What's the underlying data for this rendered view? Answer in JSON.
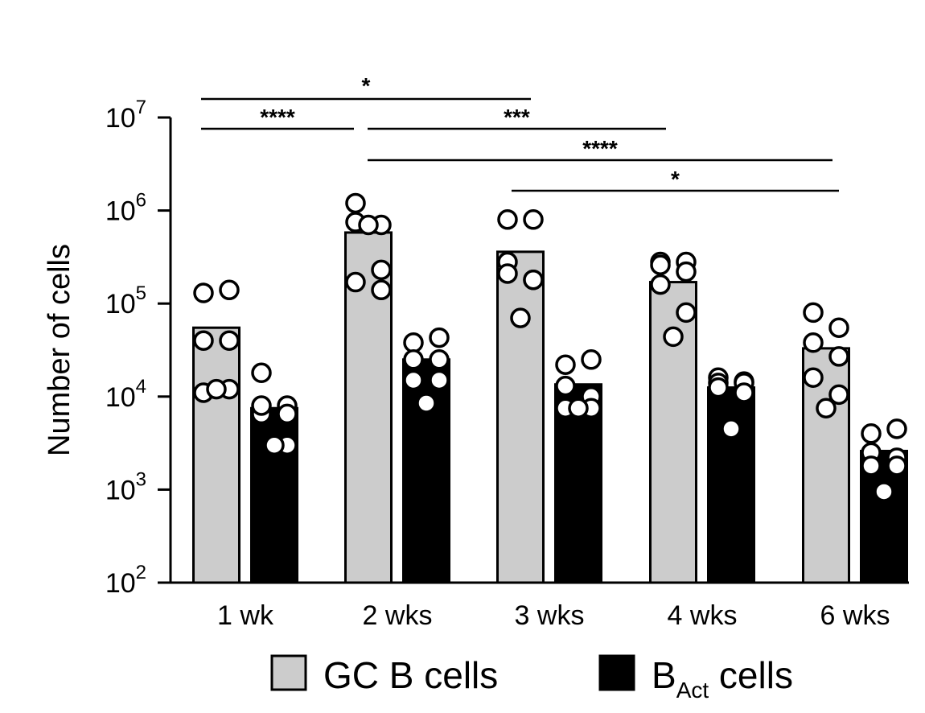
{
  "chart_data": {
    "type": "bar",
    "ylabel": "Number of cells",
    "yscale": "log",
    "ylim": [
      100,
      10000000
    ],
    "yticks": [
      {
        "value": 100,
        "base": "10",
        "exp": "2"
      },
      {
        "value": 1000,
        "base": "10",
        "exp": "3"
      },
      {
        "value": 10000,
        "base": "10",
        "exp": "4"
      },
      {
        "value": 100000,
        "base": "10",
        "exp": "5"
      },
      {
        "value": 1000000,
        "base": "10",
        "exp": "6"
      },
      {
        "value": 10000000,
        "base": "10",
        "exp": "7"
      }
    ],
    "categories": [
      "1 wk",
      "2 wks",
      "3 wks",
      "4 wks",
      "6 wks"
    ],
    "legend": {
      "placement": "bottom",
      "entries": [
        {
          "text": "GC B cells",
          "sub": ""
        },
        {
          "text": "B",
          "sub": "Act",
          "suffix": " cells"
        }
      ]
    },
    "colors": {
      "gc": "#cccccc",
      "act": "#000000",
      "point_fill": "#ffffff",
      "axis": "#000000"
    },
    "series": [
      {
        "values": [
          55000,
          580000,
          360000,
          170000,
          33000
        ],
        "points": [
          [
            130000,
            140000,
            40000,
            40000,
            11000,
            12000,
            12000
          ],
          [
            1200000,
            700000,
            750000,
            140000,
            170000,
            230000,
            700000
          ],
          [
            800000,
            800000,
            280000,
            180000,
            210000,
            180000,
            70000
          ],
          [
            280000,
            280000,
            260000,
            220000,
            160000,
            80000,
            44000
          ],
          [
            80000,
            55000,
            38000,
            27000,
            16000,
            10500,
            7500
          ]
        ]
      },
      {
        "values": [
          7500,
          25000,
          13500,
          12500,
          2600
        ],
        "points": [
          [
            18000,
            8000,
            6500,
            6500,
            8000,
            3000,
            3000
          ],
          [
            38000,
            43000,
            25000,
            25000,
            15000,
            15000,
            8500
          ],
          [
            22000,
            25000,
            13000,
            10000,
            7500,
            7500,
            7500
          ],
          [
            16000,
            14500,
            14000,
            14000,
            12500,
            11000,
            4500
          ],
          [
            4000,
            4500,
            2500,
            2200,
            1800,
            1800,
            950
          ]
        ]
      }
    ],
    "significance": [
      {
        "label": "*",
        "from": "1 wk",
        "to": "3 wks"
      },
      {
        "label": "****",
        "from": "1 wk",
        "to": "2 wks"
      },
      {
        "label": "***",
        "from": "2 wks",
        "to": "4 wks"
      },
      {
        "label": "****",
        "from": "2 wks",
        "to": "6 wks"
      },
      {
        "label": "*",
        "from": "3 wks",
        "to": "6 wks"
      }
    ]
  }
}
